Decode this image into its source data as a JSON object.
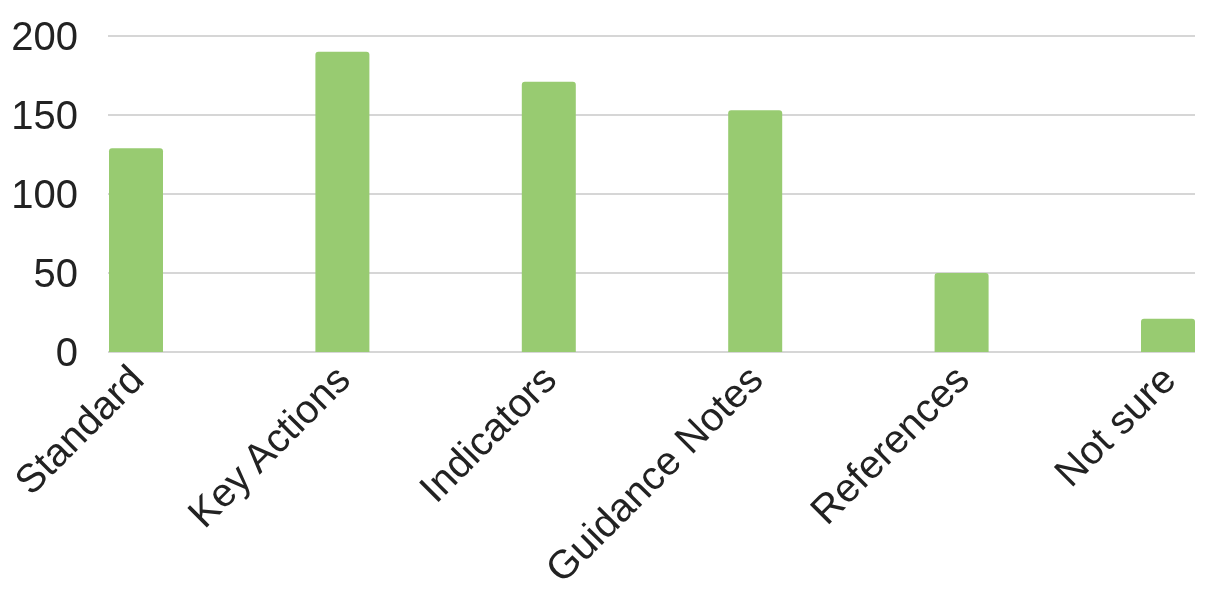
{
  "chart_data": {
    "type": "bar",
    "categories": [
      "Standard",
      "Key Actions",
      "Indicators",
      "Guidance Notes",
      "References",
      "Not sure"
    ],
    "values": [
      129,
      190,
      171,
      153,
      50,
      21
    ],
    "color": "#98cb71",
    "ylim": [
      0,
      200
    ],
    "yticks": [
      0,
      50,
      100,
      150,
      200
    ],
    "grid": "y"
  }
}
